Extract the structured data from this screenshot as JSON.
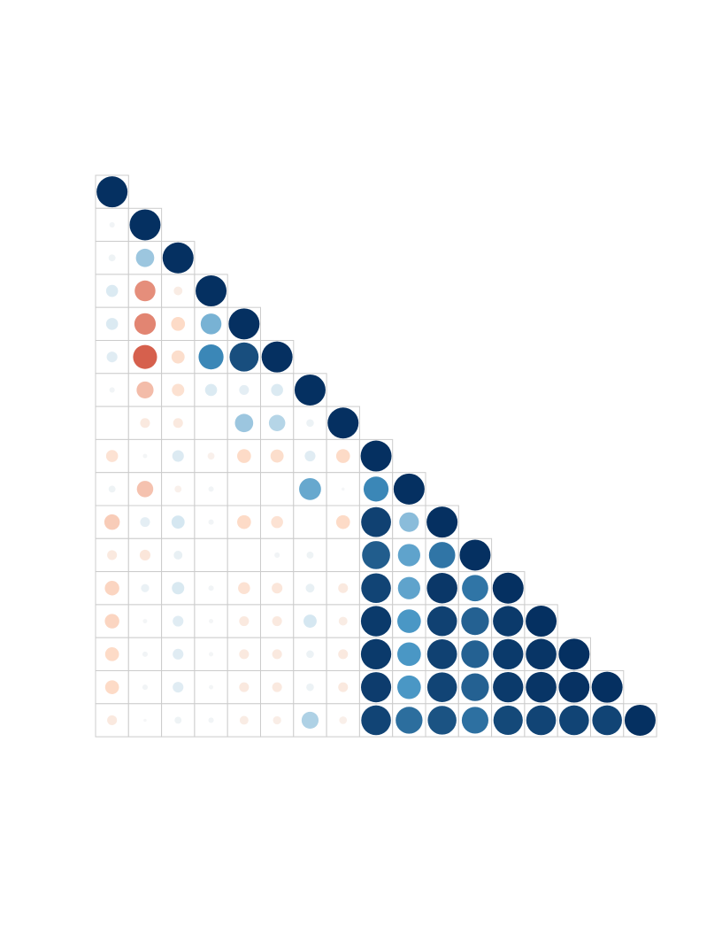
{
  "chart_data": {
    "type": "heatmap",
    "subtype": "correlation-circle-lower-triangle",
    "size": 17,
    "value_range": [
      -1,
      1
    ],
    "grid": true,
    "legend": "none",
    "colors": {
      "negative_strong": "#67001f",
      "negative_mid": "#d6604d",
      "negative_light": "#fddbc7",
      "neutral": "#f7f7f7",
      "positive_light": "#d1e5f0",
      "positive_mid": "#4393c3",
      "positive_strong": "#053061",
      "grid_line": "#cccccc"
    },
    "rows": [
      [
        1.0
      ],
      [
        0.03,
        1.0
      ],
      [
        0.05,
        0.35,
        1.0
      ],
      [
        0.15,
        -0.45,
        -0.08,
        1.0
      ],
      [
        0.15,
        -0.48,
        -0.2,
        0.45,
        1.0
      ],
      [
        0.12,
        -0.6,
        -0.18,
        0.65,
        0.88,
        1.0
      ],
      [
        0.03,
        -0.3,
        -0.16,
        0.15,
        0.1,
        0.15,
        1.0
      ],
      [
        0.0,
        -0.1,
        -0.1,
        0.0,
        0.35,
        0.28,
        0.06,
        1.0
      ],
      [
        -0.15,
        0.02,
        0.14,
        -0.05,
        -0.2,
        -0.18,
        0.12,
        -0.2,
        1.0
      ],
      [
        0.05,
        -0.28,
        -0.05,
        0.03,
        0.0,
        0.0,
        0.5,
        0.01,
        0.65,
        1.0
      ],
      [
        -0.25,
        0.1,
        0.18,
        0.03,
        -0.2,
        -0.15,
        0.0,
        -0.2,
        0.93,
        0.4,
        1.0
      ],
      [
        -0.1,
        -0.12,
        0.08,
        0.0,
        0.0,
        0.03,
        0.05,
        0.0,
        0.82,
        0.52,
        0.72,
        1.0
      ],
      [
        -0.22,
        0.07,
        0.16,
        0.03,
        -0.15,
        -0.12,
        0.08,
        -0.1,
        0.92,
        0.52,
        0.97,
        0.72,
        1.0
      ],
      [
        -0.22,
        0.02,
        0.12,
        0.02,
        -0.1,
        -0.1,
        0.18,
        -0.08,
        0.96,
        0.58,
        0.93,
        0.8,
        0.96,
        1.0
      ],
      [
        -0.2,
        0.03,
        0.12,
        0.02,
        -0.1,
        -0.1,
        0.06,
        -0.1,
        0.96,
        0.58,
        0.93,
        0.8,
        0.96,
        0.98,
        1.0
      ],
      [
        -0.2,
        0.03,
        0.12,
        0.02,
        -0.1,
        -0.1,
        0.06,
        -0.1,
        0.95,
        0.58,
        0.92,
        0.8,
        0.96,
        0.98,
        0.99,
        1.0
      ],
      [
        -0.1,
        0.01,
        0.05,
        0.03,
        -0.08,
        -0.07,
        0.3,
        -0.06,
        0.92,
        0.75,
        0.86,
        0.74,
        0.9,
        0.92,
        0.92,
        0.92,
        1.0
      ]
    ]
  }
}
